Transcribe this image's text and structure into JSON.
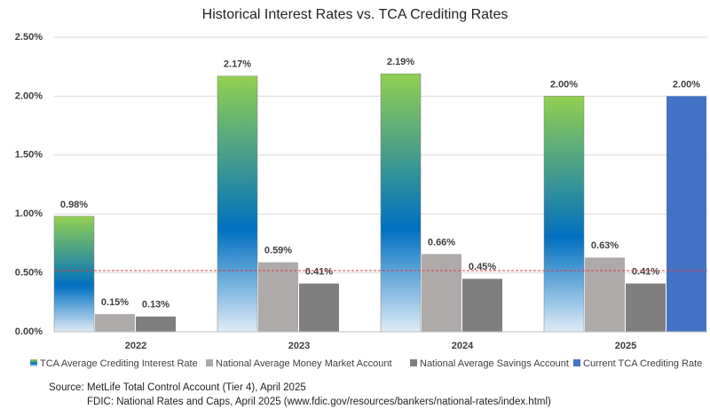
{
  "chart_data": {
    "type": "bar",
    "title": "Historical Interest Rates vs. TCA Crediting Rates",
    "categories": [
      "2022",
      "2023",
      "2024",
      "2025"
    ],
    "series": [
      {
        "name": "TCA Average Crediting Interest Rate",
        "color": "gradient",
        "gradient": [
          "#92d050",
          "#0070c0",
          "#deebf7"
        ],
        "label_color": "#0070c0",
        "values": [
          0.98,
          2.17,
          2.19,
          2.0
        ],
        "value_labels": [
          "0.98%",
          "2.17%",
          "2.19%",
          "2.00%"
        ]
      },
      {
        "name": "National Average Money Market Account",
        "color": "#aeaaaa",
        "label_color": "#404040",
        "values": [
          0.15,
          0.59,
          0.66,
          0.63
        ],
        "value_labels": [
          "0.15%",
          "0.59%",
          "0.66%",
          "0.63%"
        ]
      },
      {
        "name": "National Average Savings Account",
        "color": "#7f7f7f",
        "label_color": "#404040",
        "values": [
          0.13,
          0.41,
          0.45,
          0.41
        ],
        "value_labels": [
          "0.13%",
          "0.41%",
          "0.45%",
          "0.41%"
        ]
      },
      {
        "name": "Current TCA Crediting Rate",
        "color": "#4472c4",
        "label_color": "#00b0f0",
        "values": [
          null,
          null,
          null,
          2.0
        ],
        "value_labels": [
          null,
          null,
          null,
          "2.00%"
        ]
      }
    ],
    "ylim": [
      0,
      2.5
    ],
    "yticks": [
      {
        "value": 0,
        "label": "0.00%"
      },
      {
        "value": 0.5,
        "label": "0.50%"
      },
      {
        "value": 1.0,
        "label": "1.00%"
      },
      {
        "value": 1.5,
        "label": "1.50%"
      },
      {
        "value": 2.0,
        "label": "2.00%"
      },
      {
        "value": 2.5,
        "label": "2.50%"
      }
    ],
    "grid": true,
    "reference_line": {
      "value": 0.52,
      "color": "#e03c3c"
    },
    "legend": "bottom",
    "source_label": "Source:",
    "sources": [
      "MetLife Total Control Account (Tier 4), April  2025",
      "FDIC: National Rates and Caps, April 2025 (www.fdic.gov/resources/bankers/national-rates/index.html)"
    ]
  }
}
